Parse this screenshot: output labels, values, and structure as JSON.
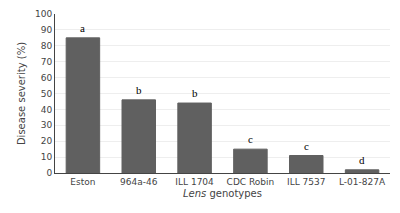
{
  "chart_data": {
    "type": "bar",
    "categories": [
      "Eston",
      "964a-46",
      "ILL 1704",
      "CDC Robin",
      "ILL 7537",
      "L-01-827A"
    ],
    "values": [
      85,
      46,
      44,
      15,
      11,
      2
    ],
    "annotations": [
      "a",
      "b",
      "b",
      "c",
      "c",
      "d"
    ],
    "color": "#606060",
    "ylabel": "Disease severity (%)",
    "xlabel": "Lens genotypes",
    "ylim": [
      0,
      100
    ],
    "yticks": [
      0,
      10,
      20,
      30,
      40,
      50,
      60,
      70,
      80,
      90,
      100
    ],
    "grid": true
  }
}
